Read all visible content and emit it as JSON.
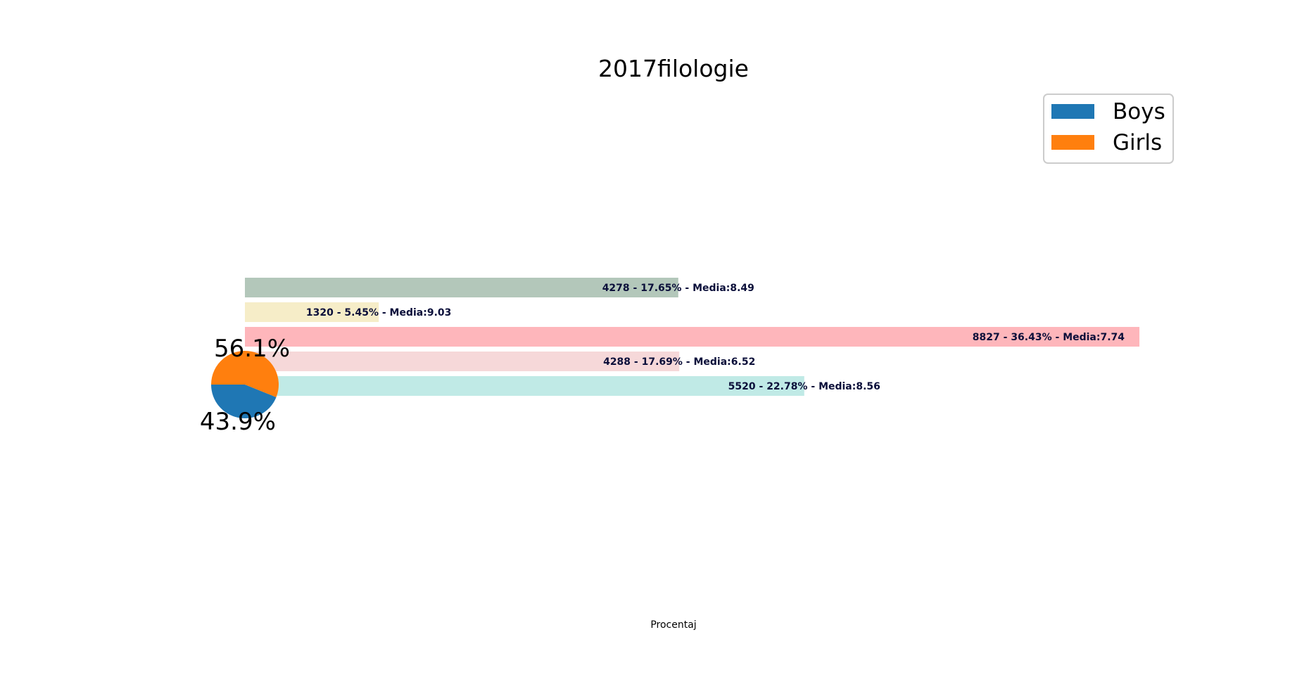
{
  "chart_data": [
    {
      "type": "bar",
      "orientation": "horizontal",
      "title": "2017filologie",
      "xlabel": "Procentaj",
      "ylabel": "",
      "grid": false,
      "axes_visible": false,
      "bars": [
        {
          "count": 4278,
          "percent": 17.65,
          "media": 8.49,
          "label": "4278 - 17.65% - Media:8.49",
          "color": "#b3c7ba"
        },
        {
          "count": 1320,
          "percent": 5.45,
          "media": 9.03,
          "label": "1320 - 5.45% - Media:9.03",
          "color": "#f6edc8"
        },
        {
          "count": 8827,
          "percent": 36.43,
          "media": 7.74,
          "label": "8827 - 36.43% - Media:7.74",
          "color": "#feb6bb"
        },
        {
          "count": 4288,
          "percent": 17.69,
          "media": 6.52,
          "label": "4288 - 17.69% - Media:6.52",
          "color": "#f6d8d9"
        },
        {
          "count": 5520,
          "percent": 22.78,
          "media": 8.56,
          "label": "5520 - 22.78% - Media:8.56",
          "color": "#c0eae6"
        }
      ]
    },
    {
      "type": "pie",
      "slices": [
        {
          "name": "Boys",
          "value": 43.9,
          "label": "43.9%",
          "color": "#1f77b4"
        },
        {
          "name": "Girls",
          "value": 56.1,
          "label": "56.1%",
          "color": "#ff7f0e"
        }
      ],
      "legend": {
        "placement": "top-right",
        "entries": [
          "Boys",
          "Girls"
        ]
      }
    }
  ]
}
